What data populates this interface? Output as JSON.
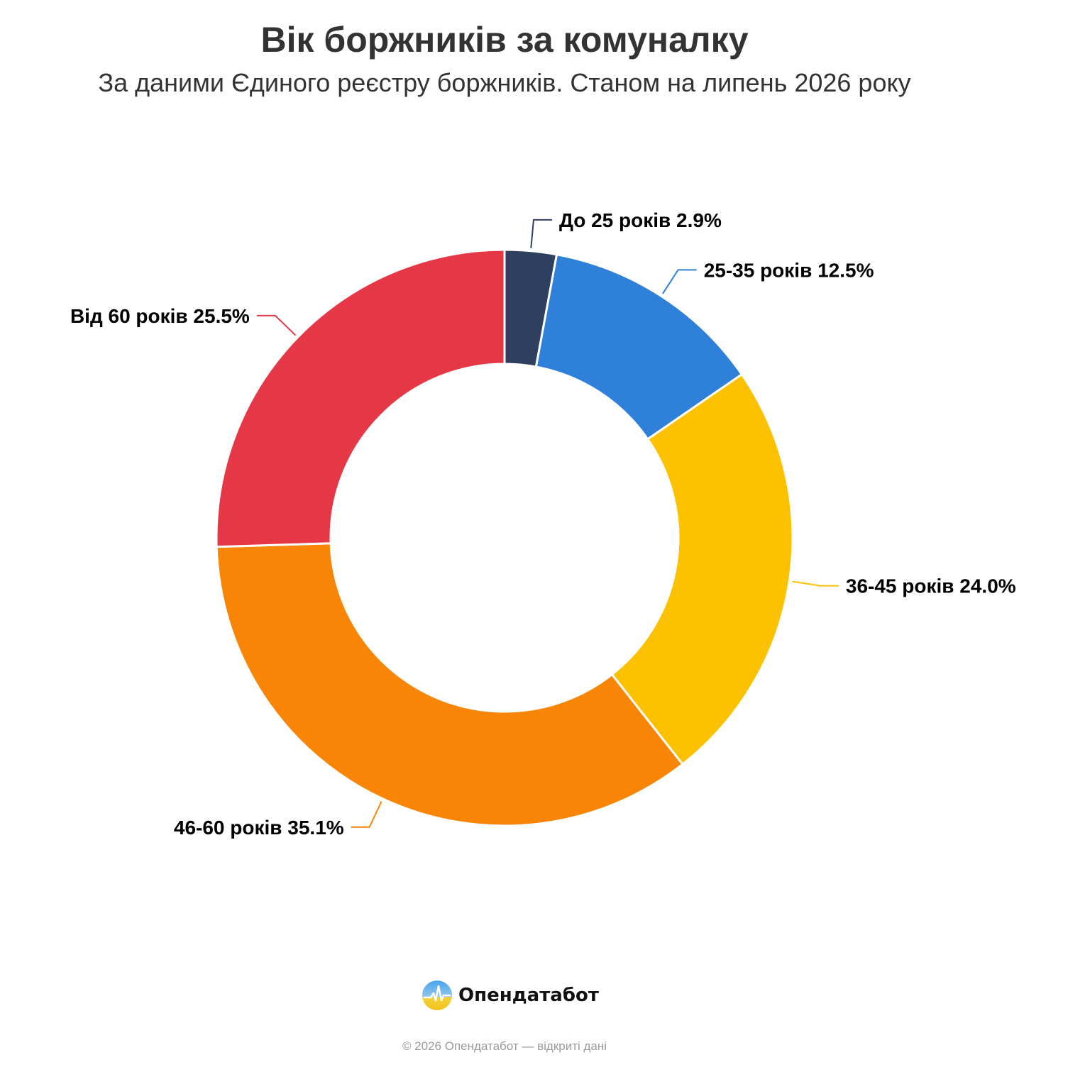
{
  "header": {
    "title": "Вік боржників за комуналку",
    "subtitle": "За даними Єдиного реєстру боржників. Станом на липень 2026 року"
  },
  "chart_data": {
    "type": "pie",
    "variant": "donut",
    "title": "Вік боржників за комуналку",
    "subtitle": "За даними Єдиного реєстру боржників. Станом на липень 2026 року",
    "unit": "%",
    "slices": [
      {
        "label": "До 25 років 2.9%",
        "value": 2.9,
        "color": "#2e3f5f"
      },
      {
        "label": "25-35 років 12.5%",
        "value": 12.5,
        "color": "#2e80d9"
      },
      {
        "label": "36-45 років 24.0%",
        "value": 24.0,
        "color": "#fcc100"
      },
      {
        "label": "46-60 років 35.1%",
        "value": 35.1,
        "color": "#f88505"
      },
      {
        "label": "Від 60 років 25.5%",
        "value": 25.5,
        "color": "#e63747"
      }
    ],
    "legend": "none"
  },
  "footer": {
    "brand_name": "Опендатабот",
    "brand_icon": "opendatabot-logo-icon",
    "copyright": "© 2026 Опендатабот — відкриті дані"
  }
}
